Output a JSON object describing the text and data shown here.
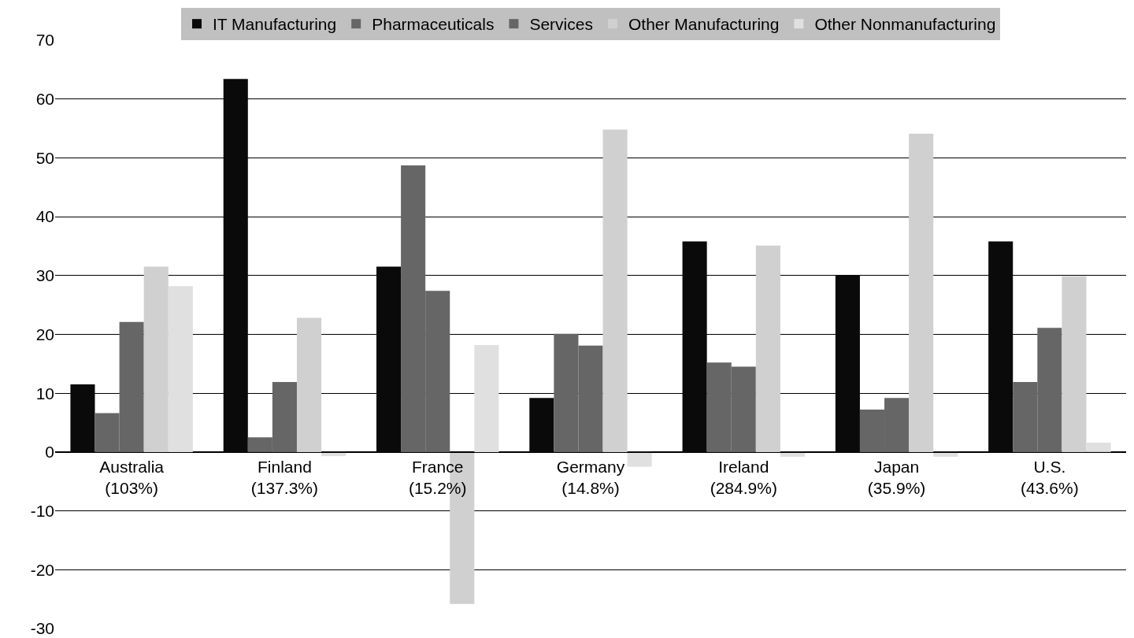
{
  "chart_data": {
    "type": "bar",
    "categories": [
      "Australia (103%)",
      "Finland (137.3%)",
      "France (15.2%)",
      "Germany (14.8%)",
      "Ireland (284.9%)",
      "Japan (35.9%)",
      "U.S. (43.6%)"
    ],
    "series": [
      {
        "name": "IT Manufacturing",
        "color": "#0a0a0a",
        "values": [
          11.5,
          63.4,
          31.5,
          9.2,
          35.8,
          30.1,
          35.8
        ]
      },
      {
        "name": "Pharmaceuticals",
        "color": "#666666",
        "values": [
          6.6,
          2.5,
          48.7,
          20.1,
          15.2,
          7.2,
          11.9
        ]
      },
      {
        "name": "Services",
        "color": "#666666",
        "values": [
          22.1,
          11.9,
          27.4,
          18.1,
          14.5,
          9.2,
          21.1
        ]
      },
      {
        "name": "Other Manufacturing",
        "color": "#d0d0d0",
        "values": [
          31.5,
          22.8,
          -25.8,
          54.8,
          35.1,
          54.1,
          29.9
        ]
      },
      {
        "name": "Other Nonmanufacturing",
        "color": "#e0e0e0",
        "values": [
          28.2,
          -0.7,
          18.2,
          -2.5,
          -0.8,
          -0.8,
          1.6
        ]
      }
    ],
    "ylim": [
      -30,
      70
    ],
    "yticks": [
      -30,
      -20,
      -10,
      0,
      10,
      20,
      30,
      40,
      50,
      60,
      70
    ],
    "grid": "y",
    "legend": "top"
  }
}
